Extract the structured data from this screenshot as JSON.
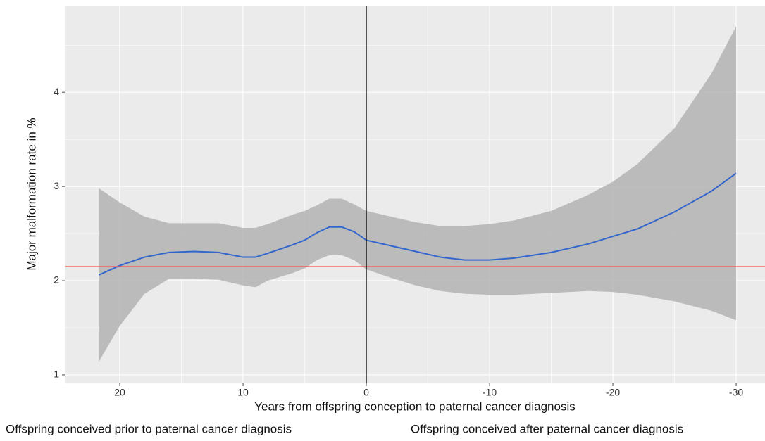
{
  "chart_data": {
    "type": "line",
    "x_label": "Years from offspring conception to paternal cancer diagnosis",
    "y_label": "Major malformation rate in %",
    "annotations": [
      "Offspring conceived prior to paternal cancer diagnosis",
      "Offspring conceived after paternal cancer diagnosis"
    ],
    "xlim": [
      24.46,
      -32.34
    ],
    "ylim": [
      0.91,
      4.92
    ],
    "xticks": [
      20,
      10,
      0,
      -10,
      -20,
      -30
    ],
    "yticks": [
      1,
      2,
      3,
      4
    ],
    "x_minor_grid": [
      15,
      5,
      -5,
      -15,
      -25
    ],
    "y_minor_grid": [
      1.5,
      2.5,
      3.5,
      4.5
    ],
    "grid": true,
    "background": "#ebebeb",
    "band_color": "#b3b3b3",
    "series": [
      {
        "color": "#3366cc",
        "x": [
          21.7,
          20,
          18,
          16,
          14,
          12,
          10,
          9,
          8,
          6,
          5,
          4,
          3,
          2,
          1,
          0,
          -2,
          -4,
          -6,
          -8,
          -10,
          -12,
          -15,
          -18,
          -20,
          -22,
          -25,
          -28,
          -30
        ],
        "values": [
          2.06,
          2.16,
          2.25,
          2.3,
          2.31,
          2.3,
          2.25,
          2.25,
          2.29,
          2.38,
          2.43,
          2.51,
          2.57,
          2.57,
          2.52,
          2.43,
          2.37,
          2.31,
          2.25,
          2.22,
          2.22,
          2.24,
          2.3,
          2.39,
          2.47,
          2.55,
          2.73,
          2.95,
          3.14
        ],
        "upper": [
          2.98,
          2.83,
          2.68,
          2.61,
          2.61,
          2.61,
          2.56,
          2.56,
          2.6,
          2.7,
          2.74,
          2.8,
          2.87,
          2.87,
          2.81,
          2.74,
          2.68,
          2.62,
          2.58,
          2.58,
          2.6,
          2.64,
          2.74,
          2.91,
          3.05,
          3.24,
          3.62,
          4.2,
          4.7
        ],
        "lower": [
          1.14,
          1.52,
          1.86,
          2.02,
          2.02,
          2.01,
          1.95,
          1.93,
          2.0,
          2.08,
          2.13,
          2.22,
          2.27,
          2.27,
          2.22,
          2.12,
          2.03,
          1.95,
          1.89,
          1.86,
          1.85,
          1.85,
          1.87,
          1.89,
          1.88,
          1.85,
          1.78,
          1.68,
          1.58
        ]
      }
    ],
    "hline": {
      "value": 2.15,
      "color": "#ff4d4d"
    },
    "vline": {
      "value": 0,
      "color": "#000000"
    }
  }
}
